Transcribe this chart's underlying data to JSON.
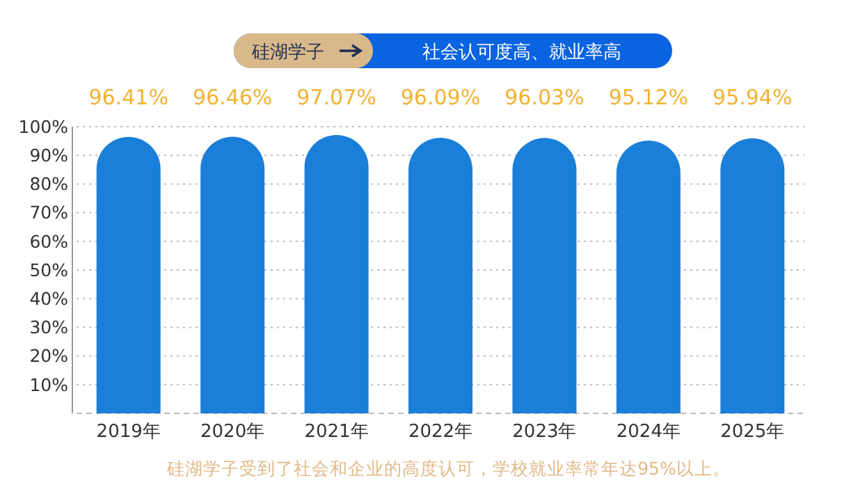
{
  "chart_data": {
    "type": "bar",
    "title": "硅湖学子",
    "subtitle": "社会认可度高、就业率高",
    "categories": [
      "2019年",
      "2020年",
      "2021年",
      "2022年",
      "2023年",
      "2024年",
      "2025年"
    ],
    "values": [
      96.41,
      96.46,
      97.07,
      96.09,
      96.03,
      95.12,
      95.94
    ],
    "value_labels": [
      "96.41%",
      "96.46%",
      "97.07%",
      "96.09%",
      "96.03%",
      "95.12%",
      "95.94%"
    ],
    "color": "#1a7fd8",
    "ylim": [
      0,
      100
    ],
    "yticks": [
      {
        "value": 0,
        "label": null
      },
      {
        "value": 10,
        "label": "10%"
      },
      {
        "value": 20,
        "label": "20%"
      },
      {
        "value": 30,
        "label": "30%"
      },
      {
        "value": 40,
        "label": "40%"
      },
      {
        "value": 50,
        "label": "50%"
      },
      {
        "value": 60,
        "label": "60%"
      },
      {
        "value": 70,
        "label": "70%"
      },
      {
        "value": 80,
        "label": "80%"
      },
      {
        "value": 90,
        "label": "90%"
      },
      {
        "value": 100,
        "label": "100%"
      }
    ],
    "grid": "y",
    "annotations": [
      "硅湖学子受到了社会和企业的高度认可，学校就业率常年达95%以上。"
    ]
  }
}
